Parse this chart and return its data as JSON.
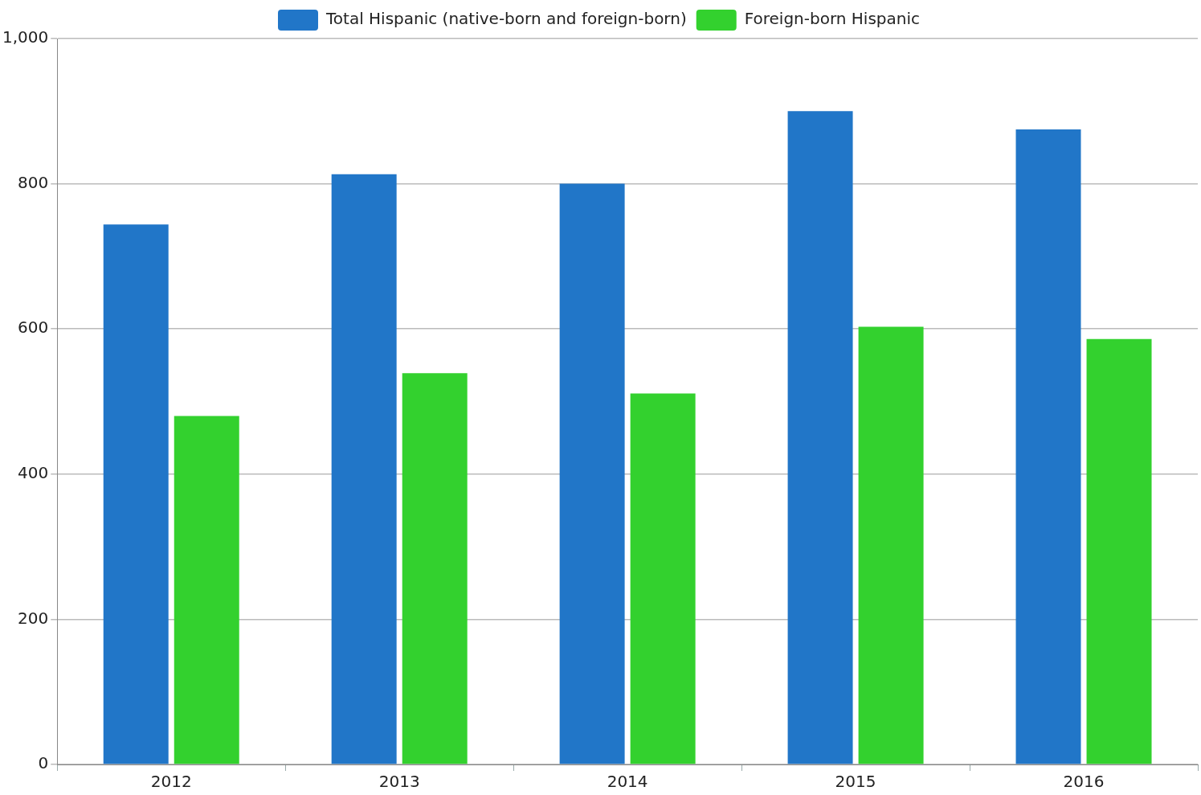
{
  "chart_data": {
    "type": "bar",
    "categories": [
      "2012",
      "2013",
      "2014",
      "2015",
      "2016"
    ],
    "series": [
      {
        "name": "Total Hispanic (native-born and foreign-born)",
        "color": "#2176c8",
        "values": [
          744,
          813,
          800,
          900,
          875
        ]
      },
      {
        "name": "Foreign-born Hispanic",
        "color": "#33d12e",
        "values": [
          480,
          539,
          511,
          603,
          586
        ]
      }
    ],
    "ylim": [
      0,
      1000
    ],
    "yticks": [
      0,
      200,
      400,
      600,
      800,
      {
        "value": 1000,
        "label": "1,000"
      }
    ],
    "grid": "y",
    "legend": "top"
  }
}
